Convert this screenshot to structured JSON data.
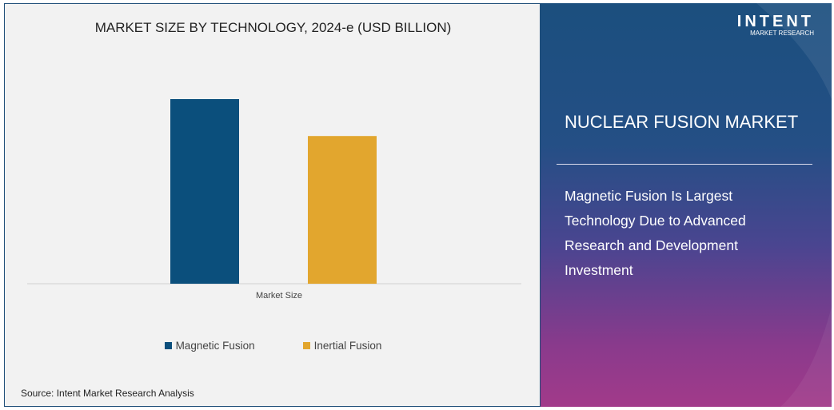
{
  "chart_data": {
    "type": "bar",
    "title": "MARKET SIZE BY TECHNOLOGY, 2024-e (USD BILLION)",
    "categories": [
      "Market Size"
    ],
    "series": [
      {
        "name": "Magnetic Fusion",
        "values": [
          1.0
        ],
        "color": "#0b4f7c"
      },
      {
        "name": "Inertial Fusion",
        "values": [
          0.8
        ],
        "color": "#e2a62e"
      }
    ],
    "ylim": [
      0,
      1.0
    ],
    "grid": false,
    "legend": "bottom"
  },
  "source": "Source:  Intent Market Research Analysis",
  "panel": {
    "logo_name": "INTENT",
    "logo_sub": "MARKET RESEARCH",
    "title": "NUCLEAR FUSION MARKET",
    "description": "Magnetic Fusion Is Largest Technology Due to Advanced Research and Development Investment"
  }
}
